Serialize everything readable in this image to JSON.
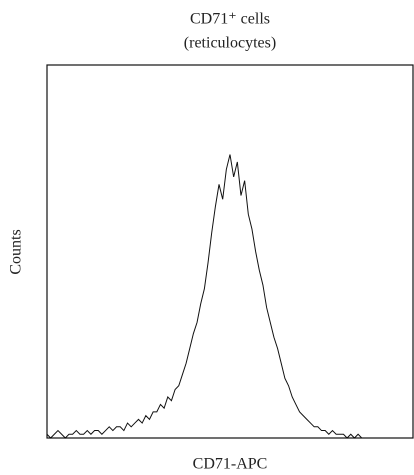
{
  "chart_data": {
    "type": "line",
    "title": [
      "CD71⁺ cells",
      "(reticulocytes)"
    ],
    "xlabel": "CD71-APC",
    "ylabel": "Counts",
    "color": "#111111",
    "xlim": [
      0,
      100
    ],
    "ylim": [
      0,
      100
    ],
    "x": [
      0,
      1,
      2,
      3,
      4,
      5,
      6,
      7,
      8,
      9,
      10,
      11,
      12,
      13,
      14,
      15,
      16,
      17,
      18,
      19,
      20,
      21,
      22,
      23,
      24,
      25,
      26,
      27,
      28,
      29,
      30,
      31,
      32,
      33,
      34,
      35,
      36,
      37,
      38,
      39,
      40,
      41,
      42,
      43,
      44,
      45,
      46,
      47,
      48,
      49,
      50,
      51,
      52,
      53,
      54,
      55,
      56,
      57,
      58,
      59,
      60,
      61,
      62,
      63,
      64,
      65,
      66,
      67,
      68,
      69,
      70,
      71,
      72,
      73,
      74,
      75,
      76,
      77,
      78,
      79,
      80,
      81,
      82,
      83,
      84,
      85,
      86,
      87,
      88,
      89,
      90,
      91,
      92,
      93,
      94,
      95,
      96,
      97,
      98,
      99,
      100
    ],
    "values": [
      1,
      0,
      1,
      2,
      1,
      0,
      1,
      1,
      2,
      1,
      1,
      2,
      1,
      2,
      2,
      1,
      2,
      3,
      2,
      3,
      3,
      2,
      4,
      3,
      4,
      5,
      4,
      6,
      5,
      7,
      7,
      9,
      8,
      11,
      10,
      13,
      14,
      17,
      20,
      24,
      28,
      31,
      36,
      40,
      47,
      55,
      62,
      68,
      64,
      72,
      76,
      70,
      74,
      65,
      69,
      60,
      56,
      50,
      45,
      41,
      35,
      31,
      27,
      24,
      20,
      16,
      14,
      11,
      9,
      7,
      6,
      5,
      4,
      3,
      3,
      2,
      2,
      1,
      2,
      1,
      1,
      1,
      0,
      1,
      0,
      1,
      0,
      0,
      0,
      0,
      0,
      0,
      0,
      0,
      0,
      0,
      0,
      0,
      0,
      0,
      0
    ]
  }
}
